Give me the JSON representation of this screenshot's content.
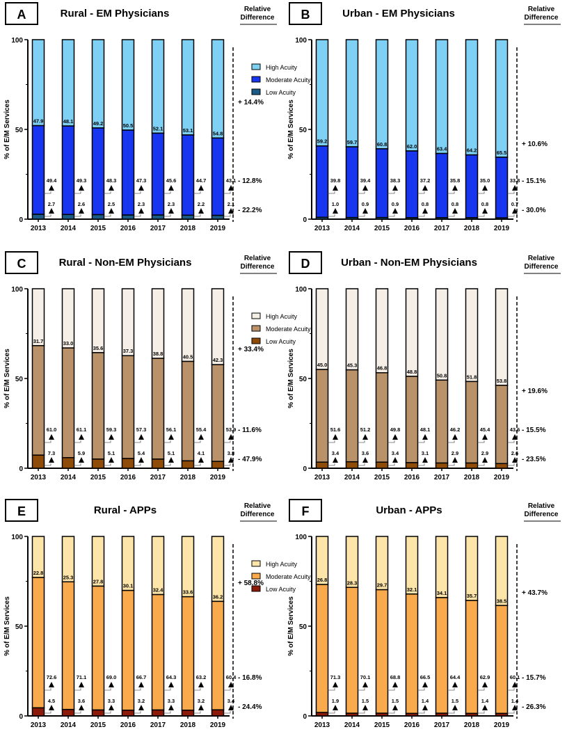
{
  "legend_labels": [
    "High Acuity",
    "Moderate Acuity",
    "Low Acuity"
  ],
  "relative_difference_label": [
    "Relative",
    "Difference"
  ],
  "chart_data": [
    {
      "type": "bar",
      "stacked": true,
      "panel": "A",
      "title": "Rural - EM Physicians",
      "ylabel": "% of E/M Services",
      "ylim": [
        0,
        100
      ],
      "yticks": [
        0,
        50,
        100
      ],
      "categories": [
        "2013",
        "2014",
        "2015",
        "2016",
        "2017",
        "2018",
        "2019"
      ],
      "colors": {
        "high": "#7fd0f5",
        "moderate": "#1836f0",
        "low": "#1b5c86"
      },
      "series": [
        {
          "name": "High Acuity",
          "values": [
            47.9,
            48.1,
            49.2,
            50.5,
            52.1,
            53.1,
            54.8
          ]
        },
        {
          "name": "Moderate Acuity",
          "values": [
            49.4,
            49.3,
            48.3,
            47.3,
            45.6,
            44.7,
            43.1
          ]
        },
        {
          "name": "Low Acuity",
          "values": [
            2.7,
            2.6,
            2.5,
            2.3,
            2.3,
            2.2,
            2.1
          ]
        }
      ],
      "relative_difference": [
        "+ 14.4%",
        "- 12.8%",
        "- 22.2%"
      ],
      "legend": true
    },
    {
      "type": "bar",
      "stacked": true,
      "panel": "B",
      "title": "Urban - EM Physicians",
      "ylabel": "% of E/M Services",
      "ylim": [
        0,
        100
      ],
      "yticks": [
        0,
        50,
        100
      ],
      "categories": [
        "2013",
        "2014",
        "2015",
        "2016",
        "2017",
        "2018",
        "2019"
      ],
      "colors": {
        "high": "#7fd0f5",
        "moderate": "#1836f0",
        "low": "#1b5c86"
      },
      "series": [
        {
          "name": "High Acuity",
          "values": [
            59.2,
            59.7,
            60.8,
            62.0,
            63.4,
            64.2,
            65.5
          ]
        },
        {
          "name": "Moderate Acuity",
          "values": [
            39.8,
            39.4,
            38.3,
            37.2,
            35.8,
            35.0,
            33.8
          ]
        },
        {
          "name": "Low Acuity",
          "values": [
            1.0,
            0.9,
            0.9,
            0.8,
            0.8,
            0.8,
            0.7
          ]
        }
      ],
      "relative_difference": [
        "+ 10.6%",
        "- 15.1%",
        "- 30.0%"
      ],
      "legend": false
    },
    {
      "type": "bar",
      "stacked": true,
      "panel": "C",
      "title": "Rural - Non-EM Physicians",
      "ylabel": "% of E/M Services",
      "ylim": [
        0,
        100
      ],
      "yticks": [
        0,
        50,
        100
      ],
      "categories": [
        "2013",
        "2014",
        "2015",
        "2016",
        "2017",
        "2018",
        "2019"
      ],
      "colors": {
        "high": "#f6efe8",
        "moderate": "#b99269",
        "low": "#8f4c08"
      },
      "series": [
        {
          "name": "High Acuity",
          "values": [
            31.7,
            33.0,
            35.6,
            37.3,
            38.8,
            40.5,
            42.3
          ]
        },
        {
          "name": "Moderate Acuity",
          "values": [
            61.0,
            61.1,
            59.3,
            57.3,
            56.1,
            55.4,
            53.9
          ]
        },
        {
          "name": "Low Acuity",
          "values": [
            7.3,
            5.9,
            5.1,
            5.4,
            5.1,
            4.1,
            3.8
          ]
        }
      ],
      "relative_difference": [
        "+ 33.4%",
        "- 11.6%",
        "- 47.9%"
      ],
      "legend": true
    },
    {
      "type": "bar",
      "stacked": true,
      "panel": "D",
      "title": "Urban - Non-EM Physicians",
      "ylabel": "% of E/M Services",
      "ylim": [
        0,
        100
      ],
      "yticks": [
        0,
        50,
        100
      ],
      "categories": [
        "2013",
        "2014",
        "2015",
        "2016",
        "2017",
        "2018",
        "2019"
      ],
      "colors": {
        "high": "#f6efe8",
        "moderate": "#b99269",
        "low": "#8f4c08"
      },
      "series": [
        {
          "name": "High Acuity",
          "values": [
            45.0,
            45.3,
            46.8,
            48.8,
            50.8,
            51.8,
            53.8
          ]
        },
        {
          "name": "Moderate Acuity",
          "values": [
            51.6,
            51.2,
            49.8,
            48.1,
            46.2,
            45.4,
            43.6
          ]
        },
        {
          "name": "Low Acuity",
          "values": [
            3.4,
            3.6,
            3.4,
            3.1,
            2.9,
            2.9,
            2.6
          ]
        }
      ],
      "relative_difference": [
        "+ 19.6%",
        "- 15.5%",
        "- 23.5%"
      ],
      "legend": false
    },
    {
      "type": "bar",
      "stacked": true,
      "panel": "E",
      "title": "Rural - APPs",
      "ylabel": "% of E/M Services",
      "ylim": [
        0,
        100
      ],
      "yticks": [
        0,
        50,
        100
      ],
      "categories": [
        "2013",
        "2014",
        "2015",
        "2016",
        "2017",
        "2018",
        "2019"
      ],
      "colors": {
        "high": "#fde4a9",
        "moderate": "#f9aa4d",
        "low": "#8c1a08"
      },
      "series": [
        {
          "name": "High Acuity",
          "values": [
            22.8,
            25.3,
            27.8,
            30.1,
            32.4,
            33.6,
            36.2
          ]
        },
        {
          "name": "Moderate Acuity",
          "values": [
            72.6,
            71.1,
            69.0,
            66.7,
            64.3,
            63.2,
            60.4
          ]
        },
        {
          "name": "Low Acuity",
          "values": [
            4.5,
            3.6,
            3.3,
            3.2,
            3.3,
            3.2,
            3.4
          ]
        }
      ],
      "relative_difference": [
        "+ 58.8%",
        "- 16.8%",
        "- 24.4%"
      ],
      "legend": true
    },
    {
      "type": "bar",
      "stacked": true,
      "panel": "F",
      "title": "Urban - APPs",
      "ylabel": "% of E/M Services",
      "ylim": [
        0,
        100
      ],
      "yticks": [
        0,
        50,
        100
      ],
      "categories": [
        "2013",
        "2014",
        "2015",
        "2016",
        "2017",
        "2018",
        "2019"
      ],
      "colors": {
        "high": "#fde4a9",
        "moderate": "#f9aa4d",
        "low": "#8c1a08"
      },
      "series": [
        {
          "name": "High Acuity",
          "values": [
            26.8,
            28.3,
            29.7,
            32.1,
            34.1,
            35.7,
            38.5
          ]
        },
        {
          "name": "Moderate Acuity",
          "values": [
            71.3,
            70.1,
            68.8,
            66.5,
            64.4,
            62.9,
            60.1
          ]
        },
        {
          "name": "Low Acuity",
          "values": [
            1.9,
            1.5,
            1.5,
            1.4,
            1.5,
            1.4,
            1.4
          ]
        }
      ],
      "relative_difference": [
        "+ 43.7%",
        "- 15.7%",
        "- 26.3%"
      ],
      "legend": false
    }
  ]
}
